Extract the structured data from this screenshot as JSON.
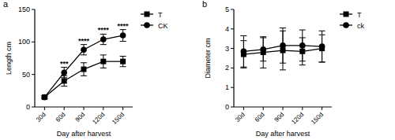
{
  "chart_data": [
    {
      "type": "line",
      "title": "a",
      "x_label": "Day after harvest",
      "y_label": "Length cm",
      "categories": [
        "30d",
        "60d",
        "90d",
        "120d",
        "150d"
      ],
      "ylim": [
        0,
        150
      ],
      "yticks": [
        0,
        50,
        100,
        150
      ],
      "grid": false,
      "legend": "right",
      "series": [
        {
          "name": "T",
          "color": "#000000",
          "marker": "square",
          "values": [
            15,
            40,
            58,
            70,
            70
          ],
          "errors": [
            2,
            8,
            10,
            10,
            8
          ]
        },
        {
          "name": "CK",
          "color": "#000000",
          "marker": "circle",
          "values": [
            15,
            53,
            88,
            104,
            110
          ],
          "errors": [
            2,
            8,
            8,
            8,
            9
          ]
        }
      ],
      "annotations": [
        {
          "x": "60d",
          "text": "***"
        },
        {
          "x": "90d",
          "text": "****"
        },
        {
          "x": "120d",
          "text": "****"
        },
        {
          "x": "150d",
          "text": "****"
        }
      ]
    },
    {
      "type": "line",
      "title": "b",
      "x_label": "Day after harvest",
      "y_label": "Diameter cm",
      "categories": [
        "30d",
        "60d",
        "90d",
        "120d",
        "150d"
      ],
      "ylim": [
        0,
        5
      ],
      "yticks": [
        0,
        1,
        2,
        3,
        4,
        5
      ],
      "grid": false,
      "legend": "right",
      "series": [
        {
          "name": "T",
          "color": "#000000",
          "marker": "square",
          "values": [
            2.7,
            2.8,
            2.9,
            2.85,
            3.0
          ],
          "errors": [
            0.7,
            0.8,
            1.0,
            0.7,
            0.7
          ]
        },
        {
          "name": "ck",
          "color": "#000000",
          "marker": "circle",
          "values": [
            2.85,
            2.95,
            3.15,
            3.15,
            3.1
          ],
          "errors": [
            0.8,
            0.6,
            0.9,
            0.8,
            0.8
          ]
        }
      ]
    }
  ]
}
